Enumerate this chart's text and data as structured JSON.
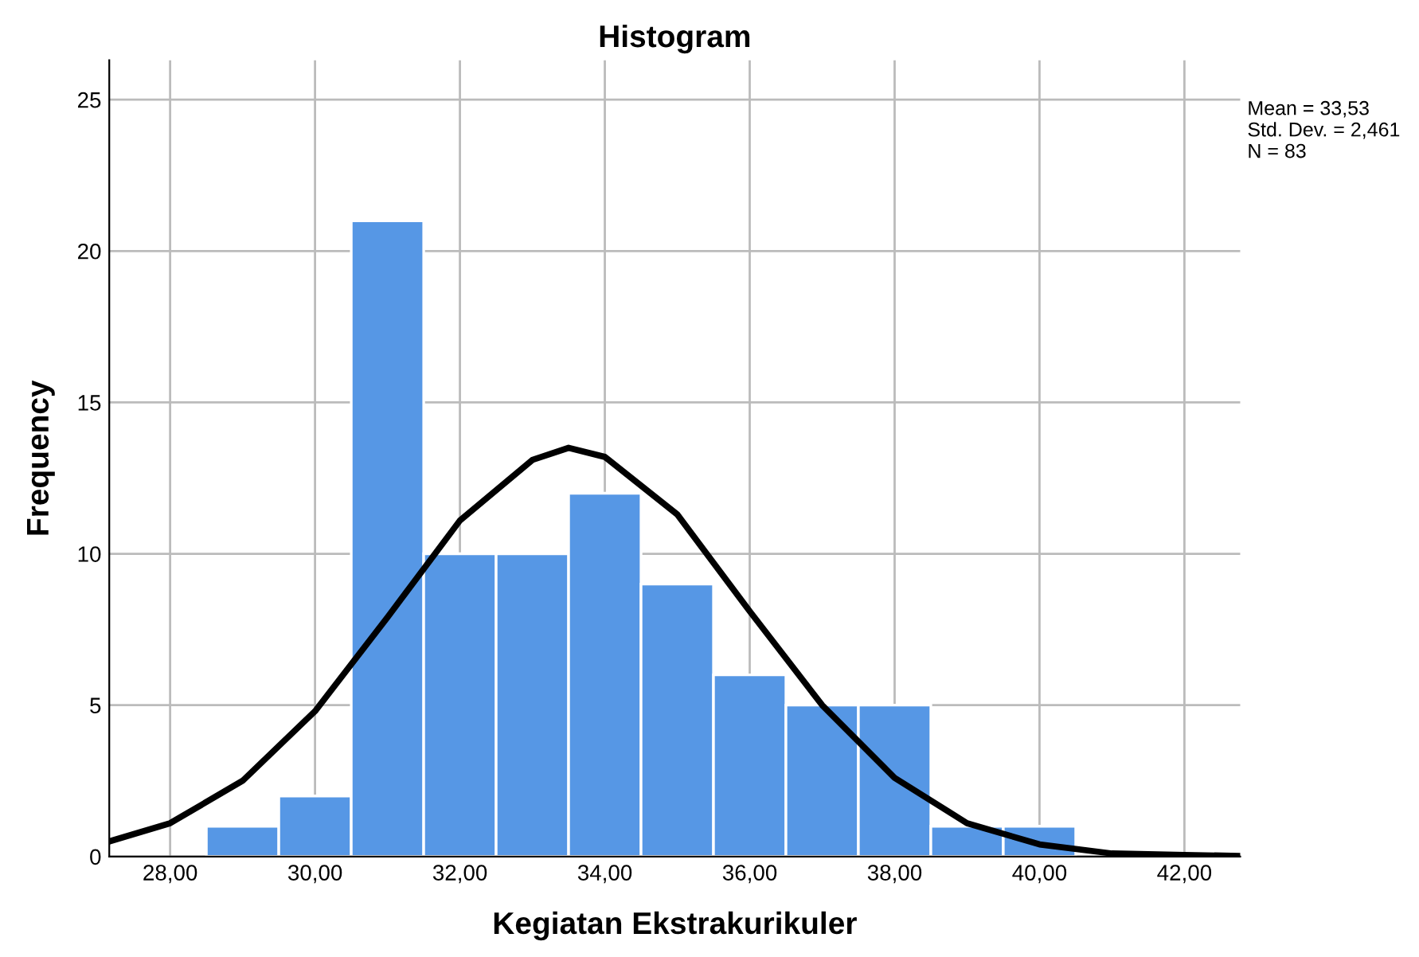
{
  "chart_data": {
    "type": "histogram",
    "title": "Histogram",
    "xlabel": "Kegiatan Ekstrakurikuler",
    "ylabel": "Frequency",
    "annotations": [
      "Mean = 33,53\nStd. Dev. = 2,461\nN = 83"
    ],
    "series": [
      {
        "type": "histogram",
        "color": "#5697e5",
        "bins": [
          28.5,
          29.5,
          30.5,
          31.5,
          32.5,
          33.5,
          34.5,
          35.5,
          36.5,
          37.5,
          38.5,
          39.5,
          40.5
        ],
        "values": [
          1,
          2,
          21,
          10,
          10,
          12,
          9,
          6,
          5,
          5,
          1,
          1
        ]
      },
      {
        "type": "line",
        "color": "#000000",
        "x": [
          27.16,
          28,
          29,
          30,
          31,
          32,
          33,
          33.5,
          34,
          35,
          36,
          37,
          38,
          39,
          40,
          41,
          42,
          42.77
        ],
        "values": [
          0.5,
          1.1,
          2.5,
          4.8,
          7.9,
          11.1,
          13.1,
          13.5,
          13.2,
          11.3,
          8.1,
          5,
          2.6,
          1.1,
          0.4,
          0.1,
          0.05,
          0.02
        ]
      }
    ],
    "xlim": [
      27.16,
      42.77
    ],
    "ylim": [
      0,
      26.3
    ],
    "xticks": [
      {
        "value": 28,
        "label": "28,00"
      },
      {
        "value": 30,
        "label": "30,00"
      },
      {
        "value": 32,
        "label": "32,00"
      },
      {
        "value": 34,
        "label": "34,00"
      },
      {
        "value": 36,
        "label": "36,00"
      },
      {
        "value": 38,
        "label": "38,00"
      },
      {
        "value": 40,
        "label": "40,00"
      },
      {
        "value": 42,
        "label": "42,00"
      }
    ],
    "yticks": [
      0,
      5,
      10,
      15,
      20,
      25
    ],
    "grid": true,
    "line_style": "solid",
    "marker": "none"
  }
}
